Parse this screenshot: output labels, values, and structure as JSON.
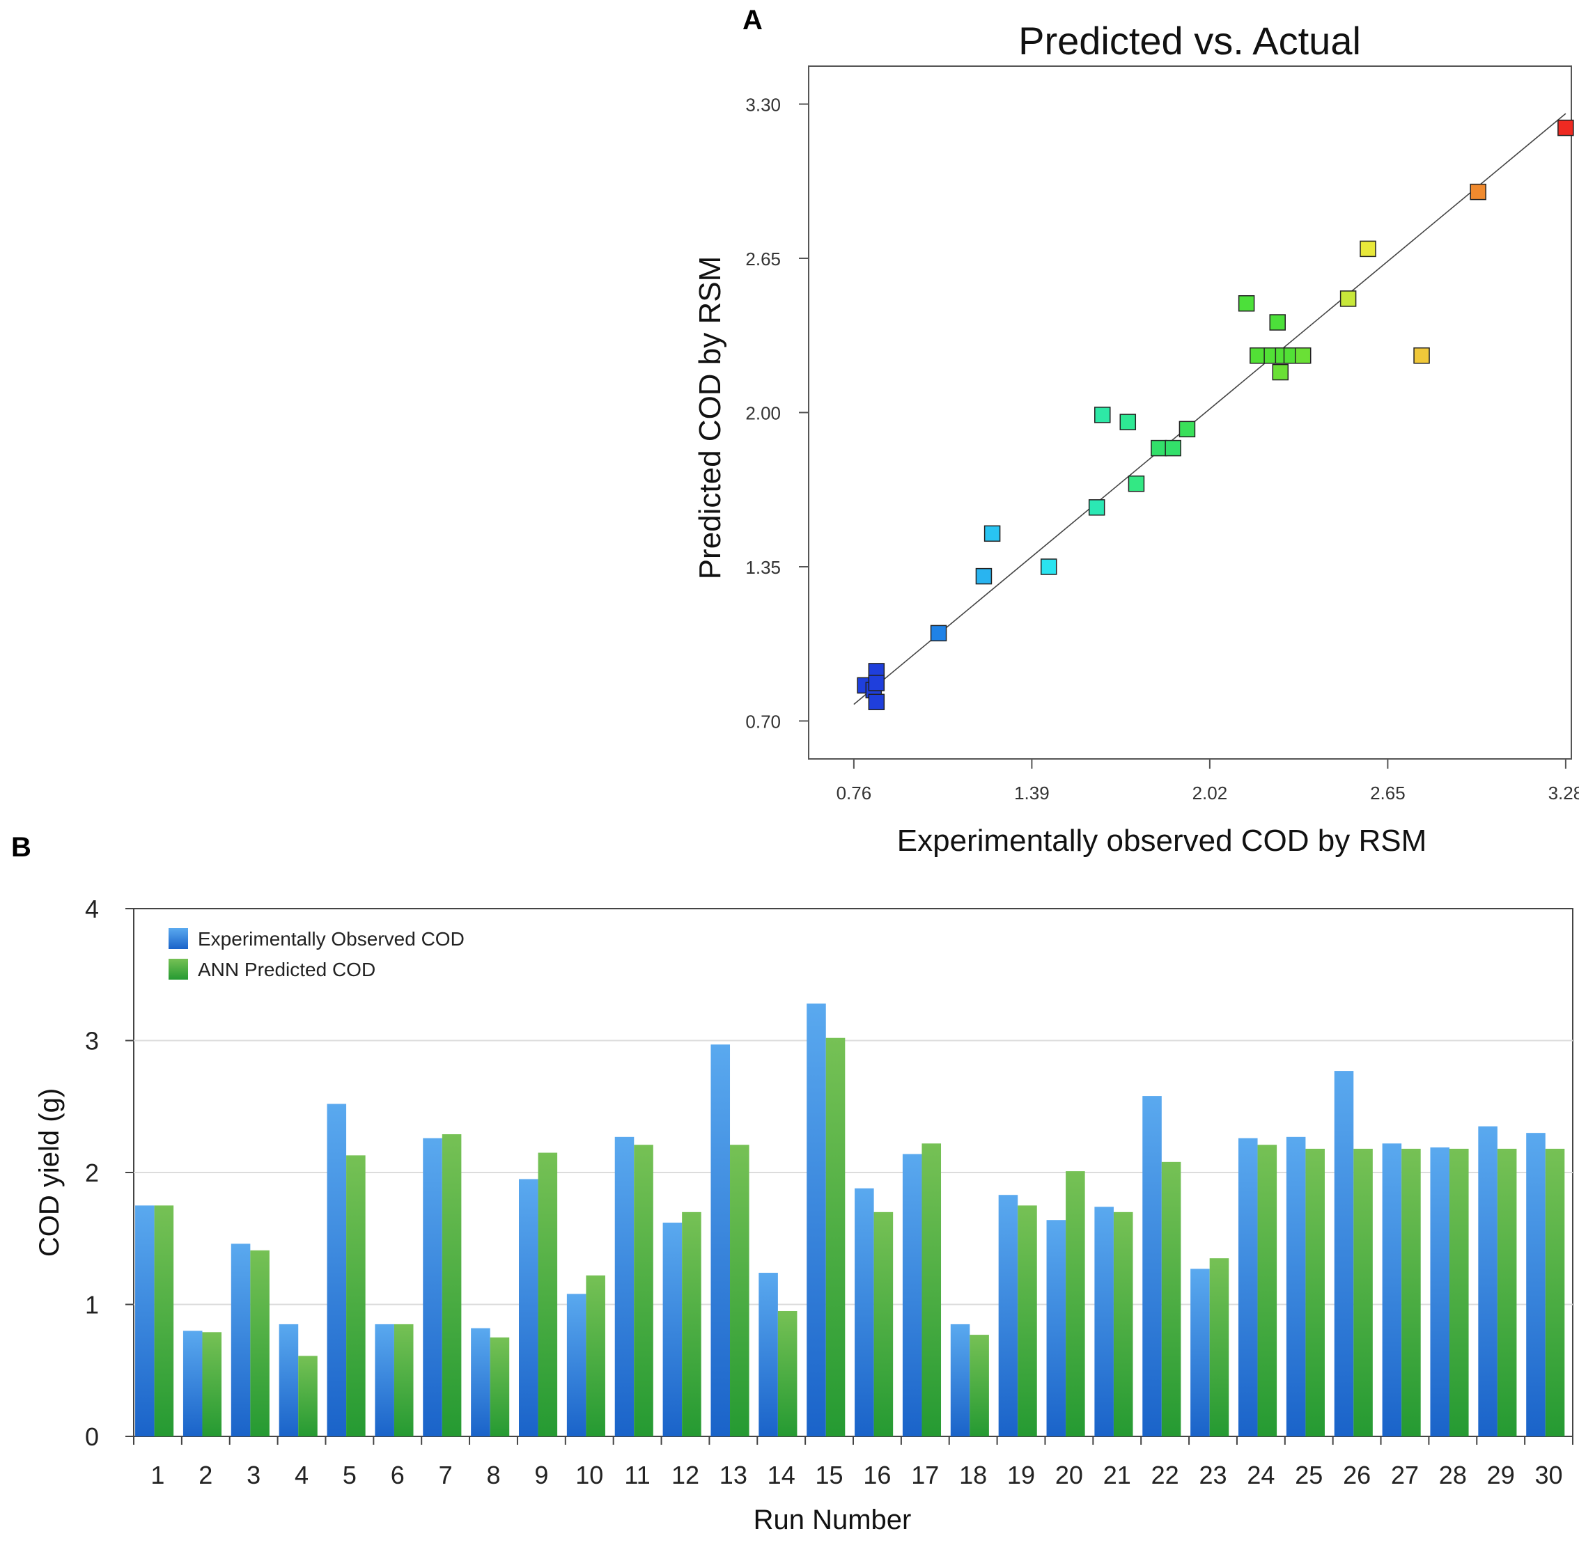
{
  "panel_labels": {
    "a": "A",
    "b": "B"
  },
  "chart_data": [
    {
      "type": "scatter",
      "title": "Predicted vs. Actual",
      "xlabel": "Experimentally observed COD by RSM",
      "ylabel": "Predicted COD by RSM",
      "xlim": [
        0.6,
        3.3
      ],
      "ylim": [
        0.54,
        3.46
      ],
      "xticks": [
        "0.76",
        "1.39",
        "2.02",
        "2.65",
        "3.28"
      ],
      "yticks": [
        "0.70",
        "1.35",
        "2.00",
        "2.65",
        "3.30"
      ],
      "fit_line": {
        "x": [
          0.76,
          3.28
        ],
        "y": [
          0.77,
          3.26
        ]
      },
      "points": [
        {
          "x": 0.8,
          "y": 0.85,
          "color": "#1f3fdc"
        },
        {
          "x": 0.83,
          "y": 0.83,
          "color": "#1f3fdc"
        },
        {
          "x": 0.84,
          "y": 0.78,
          "color": "#1f3fdc"
        },
        {
          "x": 0.84,
          "y": 0.91,
          "color": "#1f3fdc"
        },
        {
          "x": 0.84,
          "y": 0.86,
          "color": "#1f3fdc"
        },
        {
          "x": 1.06,
          "y": 1.07,
          "color": "#1f82e6"
        },
        {
          "x": 1.22,
          "y": 1.31,
          "color": "#29b4f0"
        },
        {
          "x": 1.25,
          "y": 1.49,
          "color": "#29c4f2"
        },
        {
          "x": 1.45,
          "y": 1.35,
          "color": "#2be4f0"
        },
        {
          "x": 1.62,
          "y": 1.6,
          "color": "#2be8b4"
        },
        {
          "x": 1.64,
          "y": 1.99,
          "color": "#2ee8a6"
        },
        {
          "x": 1.73,
          "y": 1.96,
          "color": "#2ee894"
        },
        {
          "x": 1.76,
          "y": 1.7,
          "color": "#33e884"
        },
        {
          "x": 1.84,
          "y": 1.85,
          "color": "#33e06a"
        },
        {
          "x": 1.89,
          "y": 1.85,
          "color": "#33e06a"
        },
        {
          "x": 1.94,
          "y": 1.93,
          "color": "#3ae05a"
        },
        {
          "x": 2.15,
          "y": 2.46,
          "color": "#4ce03a"
        },
        {
          "x": 2.19,
          "y": 2.24,
          "color": "#52e036"
        },
        {
          "x": 2.24,
          "y": 2.24,
          "color": "#52e036"
        },
        {
          "x": 2.26,
          "y": 2.38,
          "color": "#4ce03a"
        },
        {
          "x": 2.27,
          "y": 2.17,
          "color": "#6ae036"
        },
        {
          "x": 2.28,
          "y": 2.24,
          "color": "#52e036"
        },
        {
          "x": 2.31,
          "y": 2.24,
          "color": "#52e036"
        },
        {
          "x": 2.35,
          "y": 2.24,
          "color": "#6ae036"
        },
        {
          "x": 2.51,
          "y": 2.48,
          "color": "#c8e83a"
        },
        {
          "x": 2.58,
          "y": 2.69,
          "color": "#e8e83a"
        },
        {
          "x": 2.77,
          "y": 2.24,
          "color": "#f0c83a"
        },
        {
          "x": 2.97,
          "y": 2.93,
          "color": "#f08a2e"
        },
        {
          "x": 3.28,
          "y": 3.2,
          "color": "#ee2a22"
        }
      ]
    },
    {
      "type": "bar",
      "xlabel": "Run Number",
      "ylabel": "COD yield (g)",
      "ylim": [
        0,
        4
      ],
      "yticks": [
        "0",
        "1",
        "2",
        "3",
        "4"
      ],
      "categories": [
        "1",
        "2",
        "3",
        "4",
        "5",
        "6",
        "7",
        "8",
        "9",
        "10",
        "11",
        "12",
        "13",
        "14",
        "15",
        "16",
        "17",
        "18",
        "19",
        "20",
        "21",
        "22",
        "23",
        "24",
        "25",
        "26",
        "27",
        "28",
        "29",
        "30"
      ],
      "series": [
        {
          "name": "Experimentally Observed COD",
          "color_light": "#5aa9ef",
          "color_dark": "#1a63c9",
          "values": [
            1.75,
            0.8,
            1.46,
            0.85,
            2.52,
            0.85,
            2.26,
            0.82,
            1.95,
            1.08,
            2.27,
            1.62,
            2.97,
            1.24,
            3.28,
            1.88,
            2.14,
            0.85,
            1.83,
            1.64,
            1.74,
            2.58,
            1.27,
            2.26,
            2.27,
            2.77,
            2.22,
            2.19,
            2.35,
            2.3
          ]
        },
        {
          "name": "ANN Predicted COD",
          "color_light": "#76c155",
          "color_dark": "#259a32",
          "values": [
            1.75,
            0.79,
            1.41,
            0.61,
            2.13,
            0.85,
            2.29,
            0.75,
            2.15,
            1.22,
            2.21,
            1.7,
            2.21,
            0.95,
            3.02,
            1.7,
            2.22,
            0.77,
            1.75,
            2.01,
            1.7,
            2.08,
            1.35,
            2.21,
            2.18,
            2.18,
            2.18,
            2.18,
            2.18,
            2.18
          ]
        }
      ]
    }
  ]
}
